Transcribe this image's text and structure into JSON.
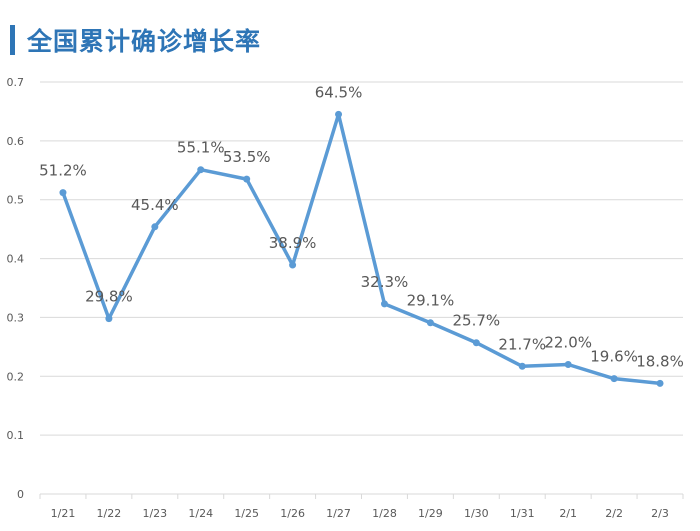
{
  "title": "全国累计确诊增长率",
  "colors": {
    "title": "#2E75B6",
    "title_bar": "#2E75B6",
    "line": "#5B9BD5",
    "grid": "#D9D9D9",
    "text": "#595959"
  },
  "chart_data": {
    "type": "line",
    "title": "全国累计确诊增长率",
    "categories": [
      "1/21",
      "1/22",
      "1/23",
      "1/24",
      "1/25",
      "1/26",
      "1/27",
      "1/28",
      "1/29",
      "1/30",
      "1/31",
      "2/1",
      "2/2",
      "2/3"
    ],
    "values": [
      0.512,
      0.298,
      0.454,
      0.551,
      0.535,
      0.389,
      0.645,
      0.323,
      0.291,
      0.257,
      0.217,
      0.22,
      0.196,
      0.188
    ],
    "data_labels": [
      "51.2%",
      "29.8%",
      "45.4%",
      "55.1%",
      "53.5%",
      "38.9%",
      "64.5%",
      "32.3%",
      "29.1%",
      "25.7%",
      "21.7%",
      "22.0%",
      "19.6%",
      "18.8%"
    ],
    "yticks": [
      "0",
      "0.1",
      "0.2",
      "0.3",
      "0.4",
      "0.5",
      "0.6",
      "0.7"
    ],
    "ylim": [
      0,
      0.7
    ],
    "grid": true,
    "legend": "none",
    "xlabel": "",
    "ylabel": ""
  }
}
